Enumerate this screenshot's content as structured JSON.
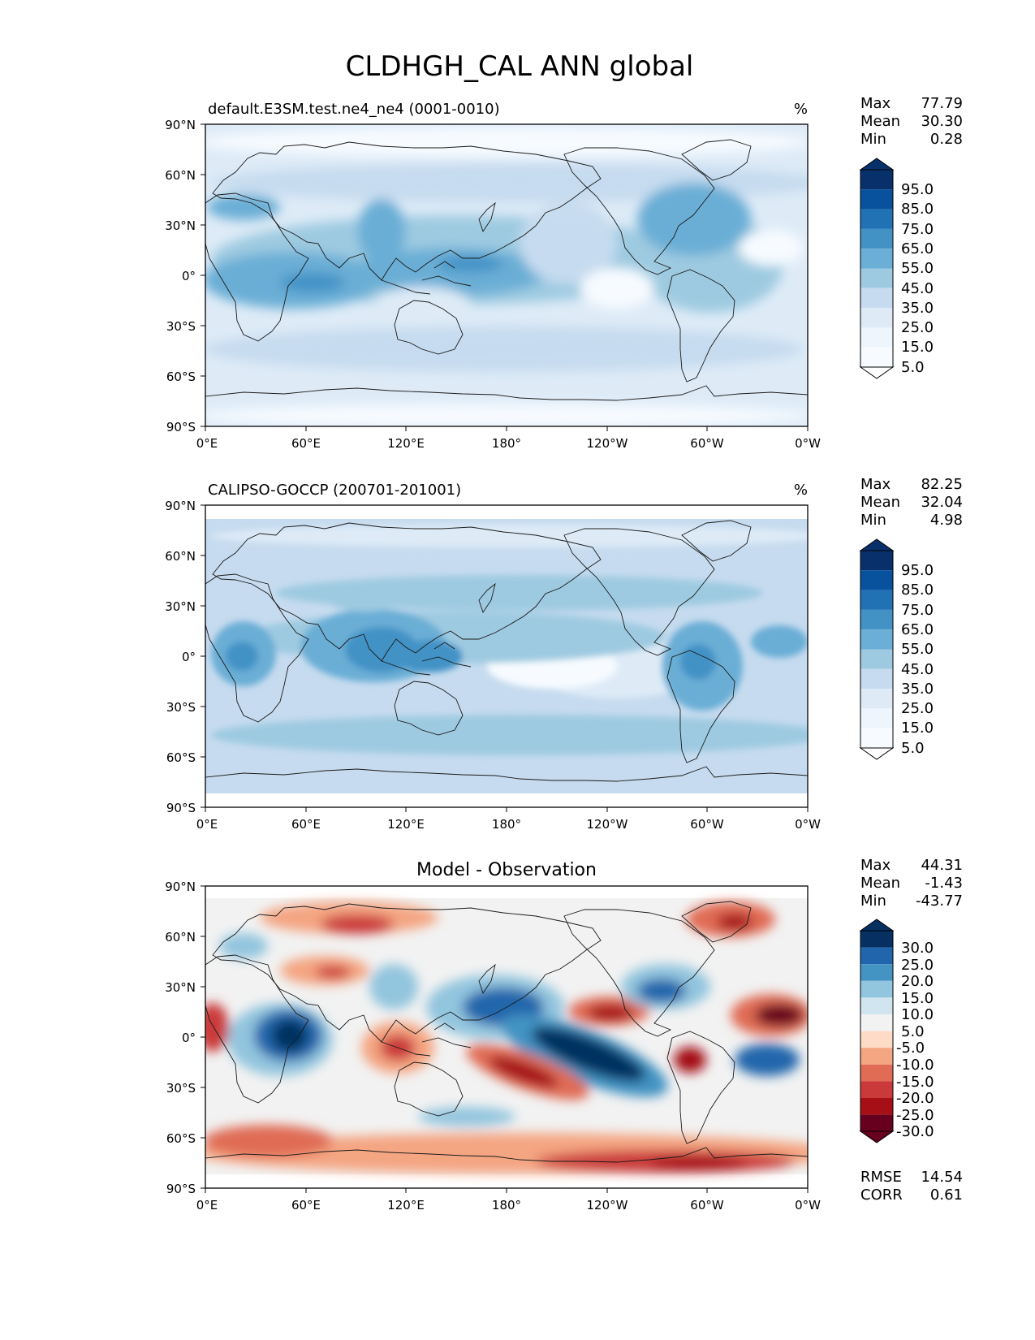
{
  "figure_title": "CLDHGH_CAL ANN global",
  "colors": {
    "seq": [
      "#f7fbff",
      "#deebf7",
      "#c6dbef",
      "#9ecae1",
      "#6baed6",
      "#4292c6",
      "#2171b5",
      "#08519c",
      "#08306b"
    ],
    "div": [
      "#67001f",
      "#a50f15",
      "#cb3a3a",
      "#e06c55",
      "#f4a582",
      "#fddbc7",
      "#f2f2f2",
      "#d1e5f0",
      "#92c5de",
      "#4393c3",
      "#2166ac",
      "#053061"
    ],
    "coast": "#1a1a1a"
  },
  "axes": {
    "lat_ticks": [
      "90°N",
      "60°N",
      "30°N",
      "0°",
      "30°S",
      "60°S",
      "90°S"
    ],
    "lon_ticks": [
      "0°E",
      "60°E",
      "120°E",
      "180°",
      "120°W",
      "60°W",
      "0°W"
    ]
  },
  "panels": [
    {
      "left_title": "default.E3SM.test.ne4_ne4 (0001-0010)",
      "center_title": "",
      "units": "%",
      "stats": [
        {
          "label": "Max",
          "value": "77.79"
        },
        {
          "label": "Mean",
          "value": "30.30"
        },
        {
          "label": "Min",
          "value": "0.28"
        }
      ],
      "colorbar_labels": [
        "95.0",
        "85.0",
        "75.0",
        "65.0",
        "55.0",
        "45.0",
        "35.0",
        "25.0",
        "15.0",
        "5.0"
      ],
      "footer_stats": []
    },
    {
      "left_title": "CALIPSO-GOCCP (200701-201001)",
      "center_title": "",
      "units": "%",
      "stats": [
        {
          "label": "Max",
          "value": "82.25"
        },
        {
          "label": "Mean",
          "value": "32.04"
        },
        {
          "label": "Min",
          "value": "4.98"
        }
      ],
      "colorbar_labels": [
        "95.0",
        "85.0",
        "75.0",
        "65.0",
        "55.0",
        "45.0",
        "35.0",
        "25.0",
        "15.0",
        "5.0"
      ],
      "footer_stats": []
    },
    {
      "left_title": "",
      "center_title": "Model - Observation",
      "units": "",
      "stats": [
        {
          "label": "Max",
          "value": "44.31"
        },
        {
          "label": "Mean",
          "value": "-1.43"
        },
        {
          "label": "Min",
          "value": "-43.77"
        }
      ],
      "colorbar_labels": [
        "30.0",
        "25.0",
        "20.0",
        "15.0",
        "10.0",
        "5.0",
        "-5.0",
        "-10.0",
        "-15.0",
        "-20.0",
        "-25.0",
        "-30.0"
      ],
      "footer_stats": [
        {
          "label": "RMSE",
          "value": "14.54"
        },
        {
          "label": "CORR",
          "value": "0.61"
        }
      ]
    }
  ]
}
